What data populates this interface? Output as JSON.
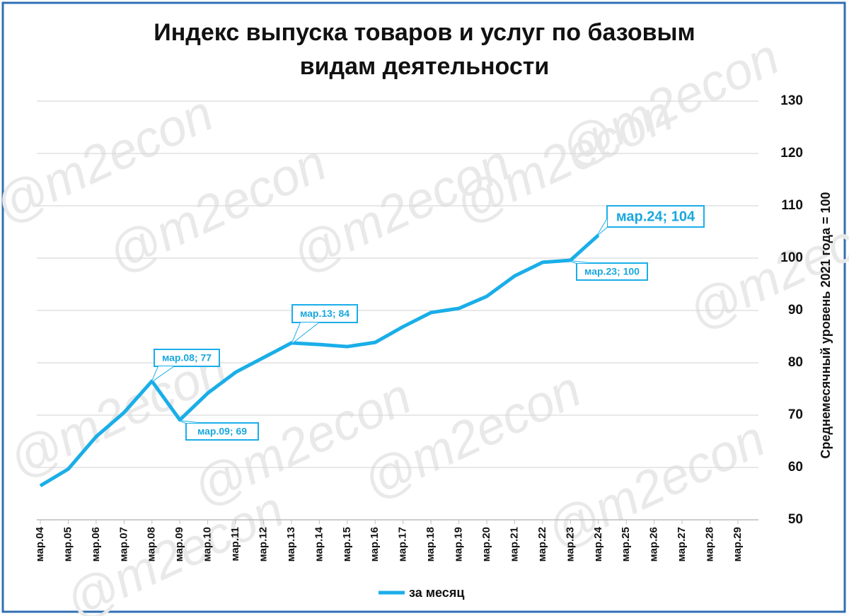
{
  "chart_data": {
    "type": "line",
    "title": "Индекс выпуска товаров и услуг по базовым видам деятельности",
    "y_axis_label": "Среднемесячный уровень 2021 года  = 100",
    "watermark": "@m2econ",
    "categories": [
      "мар.04",
      "мар.05",
      "мар.06",
      "мар.07",
      "мар.08",
      "мар.09",
      "мар.10",
      "мар.11",
      "мар.12",
      "мар.13",
      "мар.14",
      "мар.15",
      "мар.16",
      "мар.17",
      "мар.18",
      "мар.19",
      "мар.20",
      "мар.21",
      "мар.22",
      "мар.23",
      "мар.24",
      "мар.25",
      "мар.26",
      "мар.27",
      "мар.28",
      "мар.29"
    ],
    "series": [
      {
        "name": "за месяц",
        "color": "#1aaee8",
        "values": [
          56.5,
          59.7,
          65.9,
          70.5,
          76.5,
          69.1,
          74.2,
          78.2,
          81,
          83.8,
          83.5,
          83.1,
          83.9,
          86.9,
          89.6,
          90.4,
          92.7,
          96.6,
          99.2,
          99.6,
          104.4,
          null,
          null,
          null,
          null,
          null
        ]
      }
    ],
    "ylim": [
      50,
      130
    ],
    "yticks": [
      50,
      60,
      70,
      80,
      90,
      100,
      110,
      120,
      130
    ],
    "grid": true,
    "y_axis_side": "right",
    "legend": "bottom",
    "annotations": [
      {
        "text": "мар.08; 77"
      },
      {
        "text": "мар.09; 69"
      },
      {
        "text": "мар.13; 84"
      },
      {
        "text": "мар.23; 100"
      },
      {
        "text": "мар.24; 104"
      }
    ]
  }
}
